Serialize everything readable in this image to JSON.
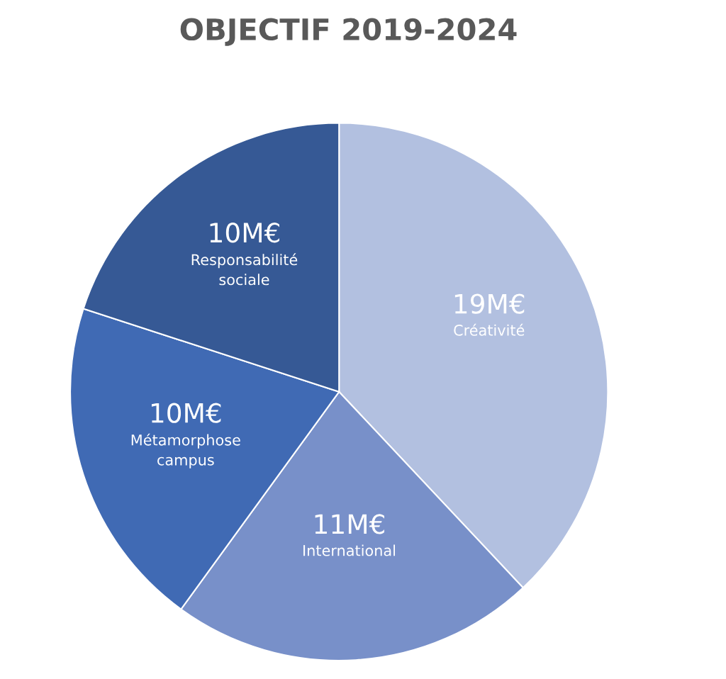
{
  "chart_data": {
    "type": "pie",
    "title": "OBJECTIF 2019-2024",
    "categories": [
      "Créativité",
      "International",
      "Métamorphose\ncampus",
      "Responsabilité\nsociale"
    ],
    "values": [
      19,
      11,
      10,
      10
    ],
    "value_labels": [
      "19M€",
      "11M€",
      "10M€",
      "10M€"
    ],
    "colors": [
      "#b2c0e0",
      "#7890c9",
      "#406ab4",
      "#365995"
    ]
  }
}
